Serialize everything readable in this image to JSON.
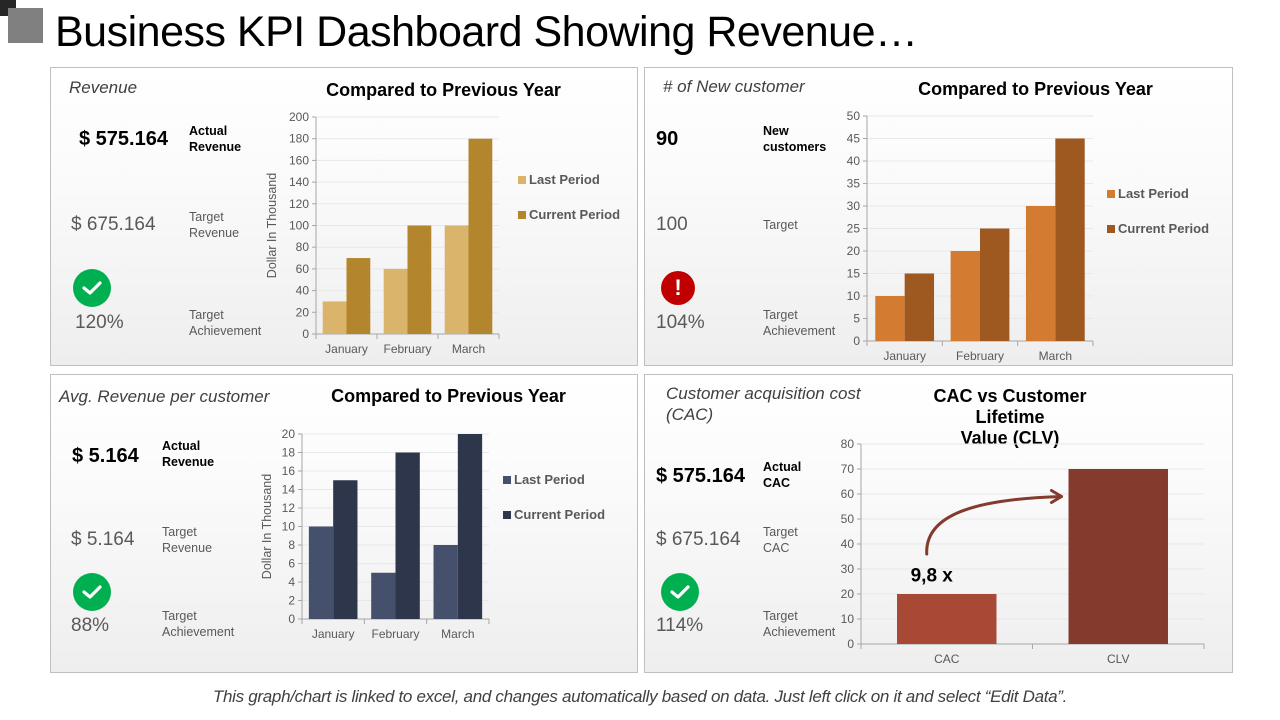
{
  "title": "Business KPI Dashboard Showing Revenue…",
  "footer_note": "This graph/chart is linked to excel, and changes automatically based on data. Just left click on it and select “Edit Data”.",
  "panels": [
    {
      "title": "Revenue",
      "actual_value": "$ 575.164",
      "actual_label": [
        "Actual",
        "Revenue"
      ],
      "target_value": "$ 675.164",
      "target_label": [
        "Target",
        "Revenue"
      ],
      "status_icon": "check-circle-icon",
      "achievement_value": "120%",
      "achievement_label": [
        "Target",
        "Achievement"
      ]
    },
    {
      "title": "# of New customer",
      "actual_value": "90",
      "actual_label": [
        "New",
        "customers"
      ],
      "target_value": "100",
      "target_label": [
        "Target"
      ],
      "status_icon": "exclamation-circle-icon",
      "status_glyph": "!",
      "achievement_value": "104%",
      "achievement_label": [
        "Target",
        "Achievement"
      ]
    },
    {
      "title": "Avg. Revenue per customer",
      "actual_value": "$ 5.164",
      "actual_label": [
        "Actual",
        "Revenue"
      ],
      "target_value": "$ 5.164",
      "target_label": [
        "Target",
        "Revenue"
      ],
      "status_icon": "check-circle-icon",
      "achievement_value": "88%",
      "achievement_label": [
        "Target",
        "Achievement"
      ]
    },
    {
      "title": [
        "Customer acquisition cost",
        "(CAC)"
      ],
      "actual_value": "$ 575.164",
      "actual_label": [
        "Actual",
        "CAC"
      ],
      "target_value": "$ 675.164",
      "target_label": [
        "Target",
        "CAC"
      ],
      "status_icon": "check-circle-icon",
      "achievement_value": "114%",
      "achievement_label": [
        "Target",
        "Achievement"
      ]
    }
  ],
  "colors": {
    "status_ok": "#00b050",
    "status_warn": "#c00000"
  },
  "chart_data": [
    {
      "type": "bar",
      "title": "Compared to Previous Year",
      "categories": [
        "January",
        "February",
        "March"
      ],
      "series": [
        {
          "name": "Last Period",
          "values": [
            30,
            60,
            100
          ],
          "color": "#dbb46c"
        },
        {
          "name": "Current Period",
          "values": [
            70,
            100,
            180
          ],
          "color": "#b3852c"
        }
      ],
      "xlabel": "",
      "ylabel": "Dollar In Thousand",
      "ylim": [
        0,
        200
      ],
      "yticks": [
        0,
        20,
        40,
        60,
        80,
        100,
        120,
        140,
        160,
        180,
        200
      ],
      "grid": true,
      "legend": "right"
    },
    {
      "type": "bar",
      "title": "Compared to Previous Year",
      "categories": [
        "January",
        "February",
        "March"
      ],
      "series": [
        {
          "name": "Last Period",
          "values": [
            10,
            20,
            30
          ],
          "color": "#d47b32"
        },
        {
          "name": "Current Period",
          "values": [
            15,
            25,
            45
          ],
          "color": "#9e5920"
        }
      ],
      "xlabel": "",
      "ylabel": "",
      "ylim": [
        0,
        50
      ],
      "yticks": [
        0,
        5,
        10,
        15,
        20,
        25,
        30,
        35,
        40,
        45,
        50
      ],
      "grid": true,
      "legend": "right"
    },
    {
      "type": "bar",
      "title": "Compared to Previous Year",
      "categories": [
        "January",
        "February",
        "March"
      ],
      "series": [
        {
          "name": "Last Period",
          "values": [
            10,
            5,
            8
          ],
          "color": "#44506c"
        },
        {
          "name": "Current Period",
          "values": [
            15,
            18,
            20
          ],
          "color": "#2e364b"
        }
      ],
      "xlabel": "",
      "ylabel": "Dollar In Thousand",
      "ylim": [
        0,
        20
      ],
      "yticks": [
        0,
        2,
        4,
        6,
        8,
        10,
        12,
        14,
        16,
        18,
        20
      ],
      "grid": true,
      "legend": "right"
    },
    {
      "type": "bar",
      "title": "CAC vs Customer Lifetime Value (CLV)",
      "title_lines": [
        "CAC vs Customer Lifetime",
        "Value (CLV)"
      ],
      "categories": [
        "CAC",
        "CLV"
      ],
      "values": [
        20,
        70
      ],
      "colors": [
        "#a84935",
        "#843a2d"
      ],
      "xlabel": "",
      "ylabel": "",
      "ylim": [
        0,
        80
      ],
      "yticks": [
        0,
        10,
        20,
        30,
        40,
        50,
        60,
        70,
        80
      ],
      "grid": true,
      "annotation": "9,8 x"
    }
  ]
}
